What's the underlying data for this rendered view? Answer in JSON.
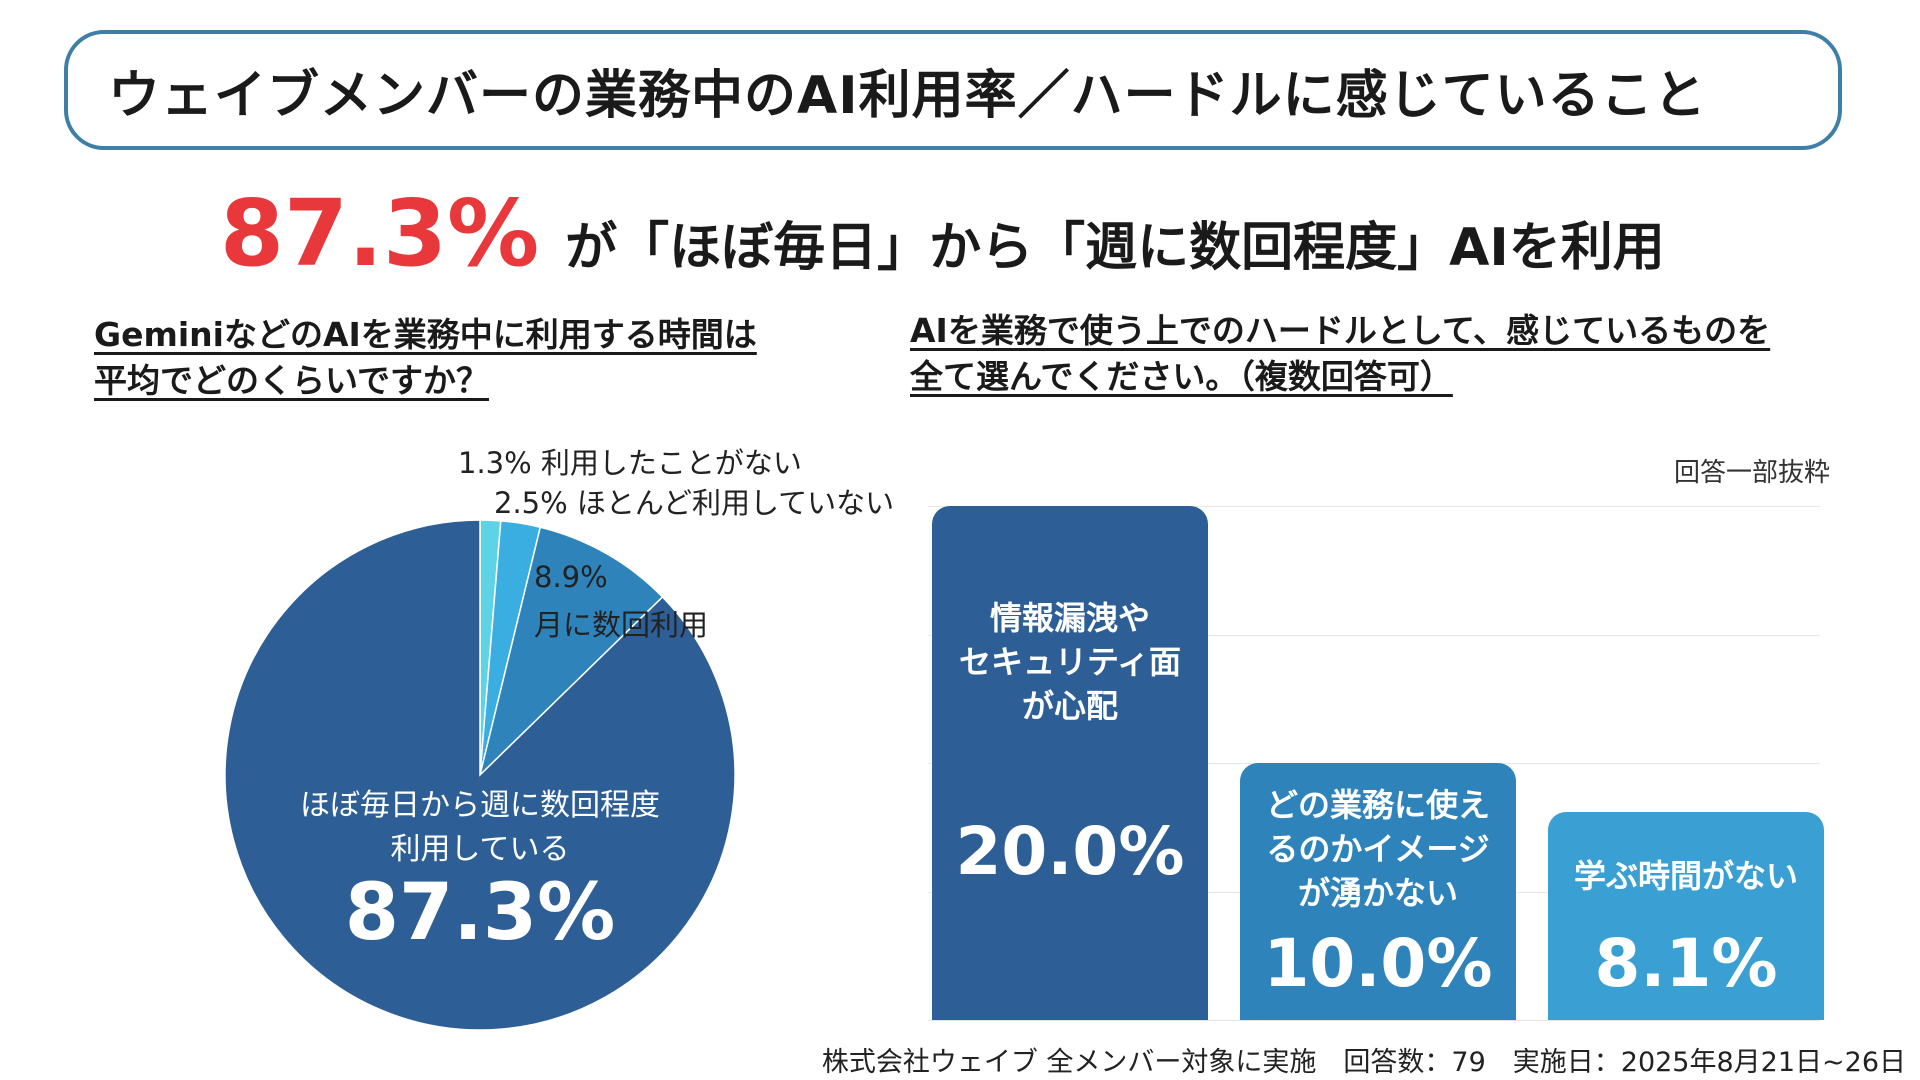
{
  "title": "ウェイブメンバーの業務中のAI利用率／ハードルに感じていること",
  "headline": {
    "highlight": "87.3%",
    "text": "が「ほぼ毎日」から「週に数回程度」AIを利用"
  },
  "left_question": [
    "GeminiなどのAIを業務中に利用する時間は",
    "平均でどのくらいですか？"
  ],
  "right_question": [
    "AIを業務で使う上でのハードルとして、感じているものを",
    "全て選んでください。（複数回答可）"
  ],
  "pie_labels": {
    "never": "1.3% 利用したことがない",
    "rarely": "2.5% ほとんど利用していない",
    "monthly_pct": "8.9%",
    "monthly_text": "月に数回利用",
    "main_line1": "ほぼ毎日から週に数回程度",
    "main_line2": "利用している",
    "main_pct": "87.3%"
  },
  "bar_note": "回答一部抜粋",
  "footer": "株式会社ウェイブ 全メンバー対象に実施　回答数：79　実施日：2025年8月21日~26日",
  "colors": {
    "accent_red": "#e8383b",
    "title_border": "#3d7fa6",
    "pie": [
      "#5fd3e6",
      "#3aaee0",
      "#2f83bb",
      "#2d5f96"
    ],
    "bars": [
      "#2d5f96",
      "#2f83bb",
      "#3aa0d4"
    ]
  },
  "chart_data": [
    {
      "type": "pie",
      "title": "GeminiなどのAIを業務中に利用する時間は平均でどのくらいですか？",
      "slices": [
        {
          "label": "利用したことがない",
          "value": 1.3
        },
        {
          "label": "ほとんど利用していない",
          "value": 2.5
        },
        {
          "label": "月に数回利用",
          "value": 8.9
        },
        {
          "label": "ほぼ毎日から週に数回程度利用している",
          "value": 87.3
        }
      ]
    },
    {
      "type": "bar",
      "title": "AIを業務で使う上でのハードルとして、感じているものを全て選んでください。（複数回答可）",
      "categories": [
        "情報漏洩やセキュリティ面が心配",
        "どの業務に使えるのかイメージが湧かない",
        "学ぶ時間がない"
      ],
      "category_lines": [
        [
          "情報漏洩や",
          "セキュリティ面",
          "が心配"
        ],
        [
          "どの業務に使え",
          "るのかイメージ",
          "が湧かない"
        ],
        [
          "学ぶ時間がない"
        ]
      ],
      "values": [
        20.0,
        10.0,
        8.1
      ],
      "value_labels": [
        "20.0%",
        "10.0%",
        "8.1%"
      ],
      "ylim": [
        0,
        20.0
      ],
      "grid": true
    }
  ]
}
